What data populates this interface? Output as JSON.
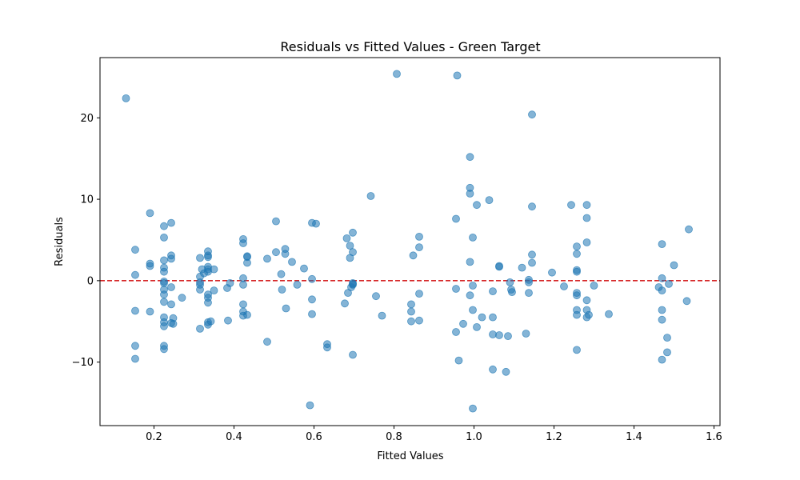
{
  "chart_data": {
    "type": "scatter",
    "title": "Residuals vs Fitted Values - Green Target",
    "xlabel": "Fitted Values",
    "ylabel": "Residuals",
    "xlim": [
      0.065,
      1.615
    ],
    "ylim": [
      -17.8,
      27.4
    ],
    "xticks": [
      {
        "value": 0.2,
        "label": "0.2"
      },
      {
        "value": 0.4,
        "label": "0.4"
      },
      {
        "value": 0.6,
        "label": "0.6"
      },
      {
        "value": 0.8,
        "label": "0.8"
      },
      {
        "value": 1.0,
        "label": "1.0"
      },
      {
        "value": 1.2,
        "label": "1.2"
      },
      {
        "value": 1.4,
        "label": "1.4"
      },
      {
        "value": 1.6,
        "label": "1.6"
      }
    ],
    "yticks": [
      {
        "value": -10,
        "label": "−10"
      },
      {
        "value": 0,
        "label": "0"
      },
      {
        "value": 10,
        "label": "10"
      },
      {
        "value": 20,
        "label": "20"
      }
    ],
    "reference_line": {
      "y": 0,
      "color": "#d62728",
      "style": "dashed"
    },
    "grid": false,
    "point_color": "#1f77b4",
    "points": [
      [
        0.13,
        22.4
      ],
      [
        0.153,
        3.8
      ],
      [
        0.153,
        0.7
      ],
      [
        0.153,
        -3.7
      ],
      [
        0.153,
        -8.0
      ],
      [
        0.153,
        -9.6
      ],
      [
        0.19,
        8.3
      ],
      [
        0.19,
        2.1
      ],
      [
        0.19,
        1.8
      ],
      [
        0.19,
        -3.8
      ],
      [
        0.225,
        6.7
      ],
      [
        0.225,
        5.3
      ],
      [
        0.225,
        2.5
      ],
      [
        0.225,
        1.6
      ],
      [
        0.225,
        1.1
      ],
      [
        0.225,
        -0.1
      ],
      [
        0.225,
        -0.3
      ],
      [
        0.225,
        -1.1
      ],
      [
        0.225,
        -1.7
      ],
      [
        0.225,
        -2.6
      ],
      [
        0.225,
        -4.5
      ],
      [
        0.225,
        -5.1
      ],
      [
        0.225,
        -5.6
      ],
      [
        0.225,
        -8.0
      ],
      [
        0.225,
        -8.4
      ],
      [
        0.243,
        7.1
      ],
      [
        0.243,
        3.1
      ],
      [
        0.243,
        2.7
      ],
      [
        0.243,
        -0.8
      ],
      [
        0.243,
        -2.9
      ],
      [
        0.243,
        -5.2
      ],
      [
        0.248,
        -4.6
      ],
      [
        0.248,
        -5.3
      ],
      [
        0.27,
        -2.1
      ],
      [
        0.315,
        2.8
      ],
      [
        0.315,
        0.5
      ],
      [
        0.315,
        -0.2
      ],
      [
        0.315,
        -0.5
      ],
      [
        0.315,
        -1.1
      ],
      [
        0.315,
        -5.9
      ],
      [
        0.32,
        1.4
      ],
      [
        0.325,
        0.9
      ],
      [
        0.335,
        3.6
      ],
      [
        0.335,
        3.1
      ],
      [
        0.335,
        2.9
      ],
      [
        0.335,
        1.7
      ],
      [
        0.335,
        1.4
      ],
      [
        0.335,
        1.1
      ],
      [
        0.335,
        -1.7
      ],
      [
        0.335,
        -2.1
      ],
      [
        0.335,
        -2.7
      ],
      [
        0.335,
        -5.1
      ],
      [
        0.335,
        -5.4
      ],
      [
        0.342,
        -5.0
      ],
      [
        0.35,
        1.4
      ],
      [
        0.35,
        -1.2
      ],
      [
        0.383,
        -0.9
      ],
      [
        0.385,
        -4.9
      ],
      [
        0.39,
        -0.3
      ],
      [
        0.423,
        5.1
      ],
      [
        0.423,
        4.6
      ],
      [
        0.423,
        0.3
      ],
      [
        0.423,
        -0.5
      ],
      [
        0.423,
        -2.9
      ],
      [
        0.423,
        -3.8
      ],
      [
        0.423,
        -4.3
      ],
      [
        0.433,
        3.0
      ],
      [
        0.433,
        2.9
      ],
      [
        0.433,
        2.2
      ],
      [
        0.433,
        -4.2
      ],
      [
        0.483,
        2.7
      ],
      [
        0.483,
        -7.5
      ],
      [
        0.505,
        7.3
      ],
      [
        0.505,
        3.5
      ],
      [
        0.518,
        0.8
      ],
      [
        0.52,
        -1.1
      ],
      [
        0.528,
        3.9
      ],
      [
        0.528,
        3.3
      ],
      [
        0.53,
        -3.4
      ],
      [
        0.545,
        2.3
      ],
      [
        0.558,
        -0.5
      ],
      [
        0.575,
        1.5
      ],
      [
        0.59,
        -15.3
      ],
      [
        0.595,
        7.1
      ],
      [
        0.595,
        0.2
      ],
      [
        0.595,
        -2.3
      ],
      [
        0.595,
        -4.1
      ],
      [
        0.605,
        7.0
      ],
      [
        0.633,
        -7.8
      ],
      [
        0.633,
        -8.2
      ],
      [
        0.677,
        -2.8
      ],
      [
        0.682,
        5.2
      ],
      [
        0.685,
        -1.5
      ],
      [
        0.69,
        4.3
      ],
      [
        0.69,
        2.8
      ],
      [
        0.693,
        -0.8
      ],
      [
        0.697,
        5.9
      ],
      [
        0.697,
        3.5
      ],
      [
        0.697,
        -0.5
      ],
      [
        0.697,
        -0.4
      ],
      [
        0.697,
        -0.3
      ],
      [
        0.697,
        -9.1
      ],
      [
        0.742,
        10.4
      ],
      [
        0.755,
        -1.9
      ],
      [
        0.77,
        -4.3
      ],
      [
        0.807,
        25.4
      ],
      [
        0.843,
        -2.9
      ],
      [
        0.843,
        -3.8
      ],
      [
        0.843,
        -5.0
      ],
      [
        0.848,
        3.1
      ],
      [
        0.863,
        5.4
      ],
      [
        0.863,
        4.1
      ],
      [
        0.863,
        -1.6
      ],
      [
        0.863,
        -4.9
      ],
      [
        0.958,
        25.2
      ],
      [
        0.955,
        7.6
      ],
      [
        0.955,
        -1.0
      ],
      [
        0.955,
        -6.3
      ],
      [
        0.962,
        -9.8
      ],
      [
        0.973,
        -5.3
      ],
      [
        0.99,
        15.2
      ],
      [
        0.99,
        11.4
      ],
      [
        0.99,
        10.7
      ],
      [
        0.99,
        2.3
      ],
      [
        0.99,
        -1.8
      ],
      [
        0.997,
        5.3
      ],
      [
        0.997,
        -0.6
      ],
      [
        0.997,
        -3.6
      ],
      [
        0.997,
        -15.7
      ],
      [
        1.007,
        9.3
      ],
      [
        1.007,
        -5.7
      ],
      [
        1.02,
        -4.5
      ],
      [
        1.038,
        9.9
      ],
      [
        1.047,
        -1.3
      ],
      [
        1.047,
        -4.5
      ],
      [
        1.047,
        -6.6
      ],
      [
        1.047,
        -10.9
      ],
      [
        1.063,
        1.8
      ],
      [
        1.063,
        1.7
      ],
      [
        1.063,
        -6.7
      ],
      [
        1.08,
        -11.2
      ],
      [
        1.085,
        -6.8
      ],
      [
        1.09,
        -0.2
      ],
      [
        1.093,
        -1.1
      ],
      [
        1.095,
        -1.4
      ],
      [
        1.12,
        1.6
      ],
      [
        1.13,
        -6.5
      ],
      [
        1.137,
        0.1
      ],
      [
        1.137,
        -0.2
      ],
      [
        1.137,
        -1.5
      ],
      [
        1.145,
        20.4
      ],
      [
        1.145,
        9.1
      ],
      [
        1.145,
        3.2
      ],
      [
        1.145,
        2.2
      ],
      [
        1.195,
        1.0
      ],
      [
        1.225,
        -0.7
      ],
      [
        1.243,
        9.3
      ],
      [
        1.257,
        4.2
      ],
      [
        1.257,
        3.3
      ],
      [
        1.257,
        1.3
      ],
      [
        1.257,
        1.1
      ],
      [
        1.257,
        -1.5
      ],
      [
        1.257,
        -1.8
      ],
      [
        1.257,
        -3.6
      ],
      [
        1.257,
        -4.2
      ],
      [
        1.257,
        -8.5
      ],
      [
        1.282,
        9.3
      ],
      [
        1.282,
        7.7
      ],
      [
        1.282,
        4.7
      ],
      [
        1.282,
        -2.4
      ],
      [
        1.282,
        -3.6
      ],
      [
        1.282,
        -4.5
      ],
      [
        1.287,
        -4.2
      ],
      [
        1.3,
        -0.6
      ],
      [
        1.337,
        -4.1
      ],
      [
        1.462,
        -0.8
      ],
      [
        1.47,
        4.5
      ],
      [
        1.47,
        0.3
      ],
      [
        1.47,
        -1.2
      ],
      [
        1.47,
        -3.6
      ],
      [
        1.47,
        -4.8
      ],
      [
        1.47,
        -9.7
      ],
      [
        1.483,
        -7.0
      ],
      [
        1.483,
        -8.8
      ],
      [
        1.487,
        -0.4
      ],
      [
        1.5,
        1.9
      ],
      [
        1.532,
        -2.5
      ],
      [
        1.537,
        6.3
      ]
    ]
  }
}
